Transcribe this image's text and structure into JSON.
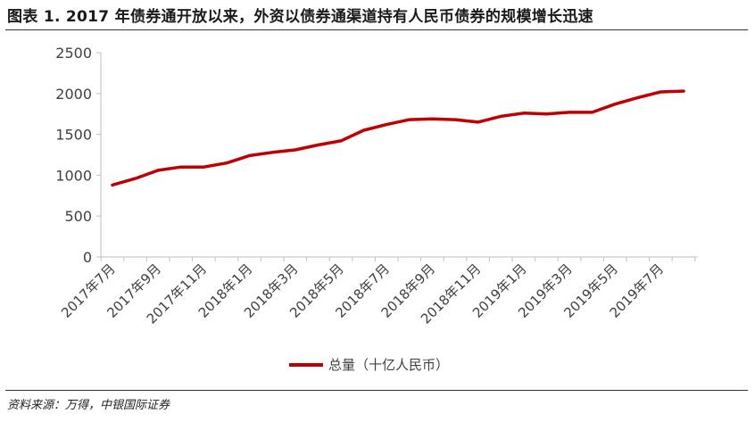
{
  "title": "图表 1. 2017 年债券通开放以来，外资以债券通渠道持有人民币债券的规模增长迅速",
  "source": "资料来源：万得，中银国际证券",
  "colors": {
    "line": "#C00000",
    "axis": "#BFBFBF",
    "text": "#404040"
  },
  "chart_data": {
    "type": "line",
    "title": "",
    "xlabel": "",
    "ylabel": "",
    "ylim": [
      0,
      2500
    ],
    "yticks": [
      0,
      500,
      1000,
      1500,
      2000,
      2500
    ],
    "grid": false,
    "legend_position": "bottom",
    "x": [
      "2017年7月",
      "2017年8月",
      "2017年9月",
      "2017年10月",
      "2017年11月",
      "2017年12月",
      "2018年1月",
      "2018年2月",
      "2018年3月",
      "2018年4月",
      "2018年5月",
      "2018年6月",
      "2018年7月",
      "2018年8月",
      "2018年9月",
      "2018年10月",
      "2018年11月",
      "2018年12月",
      "2019年1月",
      "2019年2月",
      "2019年3月",
      "2019年4月",
      "2019年5月",
      "2019年6月",
      "2019年7月",
      "2019年8月"
    ],
    "x_tick_labels": [
      "2017年7月",
      "2017年9月",
      "2017年11月",
      "2018年1月",
      "2018年3月",
      "2018年5月",
      "2018年7月",
      "2018年9月",
      "2018年11月",
      "2019年1月",
      "2019年3月",
      "2019年5月",
      "2019年7月"
    ],
    "series": [
      {
        "name": "总量（十亿人民币）",
        "values": [
          880,
          960,
          1060,
          1100,
          1100,
          1150,
          1240,
          1280,
          1310,
          1370,
          1420,
          1550,
          1620,
          1680,
          1690,
          1680,
          1650,
          1720,
          1760,
          1750,
          1770,
          1770,
          1870,
          1950,
          2020,
          2030
        ]
      }
    ]
  }
}
